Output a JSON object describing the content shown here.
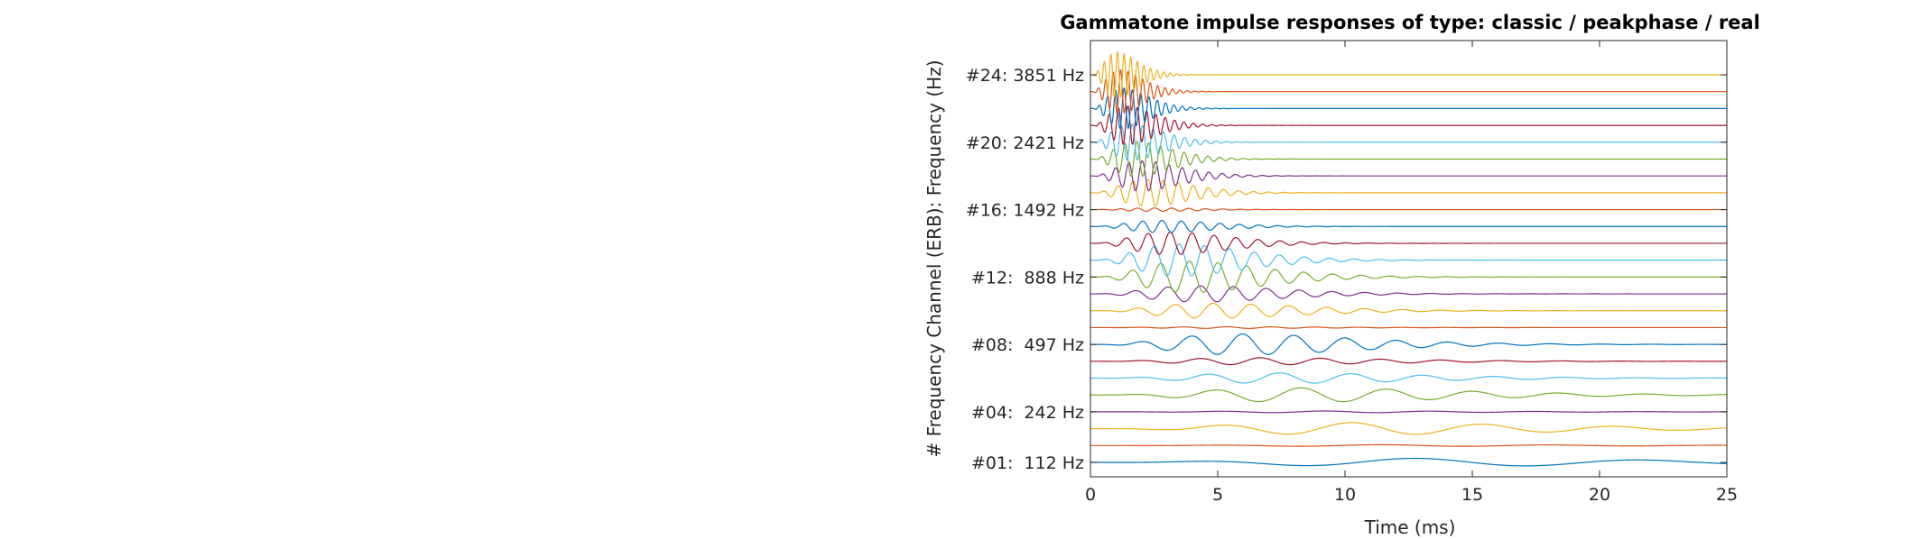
{
  "chart_data": {
    "type": "line",
    "title": "Gammatone impulse responses of type: classic / peakphase / real",
    "xlabel": "Time (ms)",
    "ylabel": "# Frequency Channel (ERB): Frequency (Hz)",
    "xlim": [
      0,
      25
    ],
    "xticks": [
      0,
      5,
      10,
      15,
      20,
      25
    ],
    "channel_count": 24,
    "frequency_range_hz": [
      112,
      3851
    ],
    "yticks": [
      {
        "channel": 1,
        "label": "#01:  112 Hz"
      },
      {
        "channel": 4,
        "label": "#04:  242 Hz"
      },
      {
        "channel": 8,
        "label": "#08:  497 Hz"
      },
      {
        "channel": 12,
        "label": "#12:  888 Hz"
      },
      {
        "channel": 16,
        "label": "#16: 1492 Hz"
      },
      {
        "channel": 20,
        "label": "#20: 2421 Hz"
      },
      {
        "channel": 24,
        "label": "#24: 3851 Hz"
      }
    ],
    "relative_amplitudes": [
      0.24,
      0.05,
      0.36,
      0.05,
      0.42,
      0.31,
      0.21,
      0.62,
      0.05,
      0.44,
      0.48,
      0.94,
      0.96,
      0.67,
      0.36,
      0.1,
      0.8,
      0.9,
      1.05,
      1.08,
      1.15,
      1.2,
      1.3,
      1.35
    ],
    "colors": [
      "#0072BD",
      "#D95319",
      "#EDB120",
      "#7E2F8E",
      "#77AC30",
      "#4DBEEE",
      "#A2142F"
    ],
    "grid": false,
    "legend": "none"
  }
}
